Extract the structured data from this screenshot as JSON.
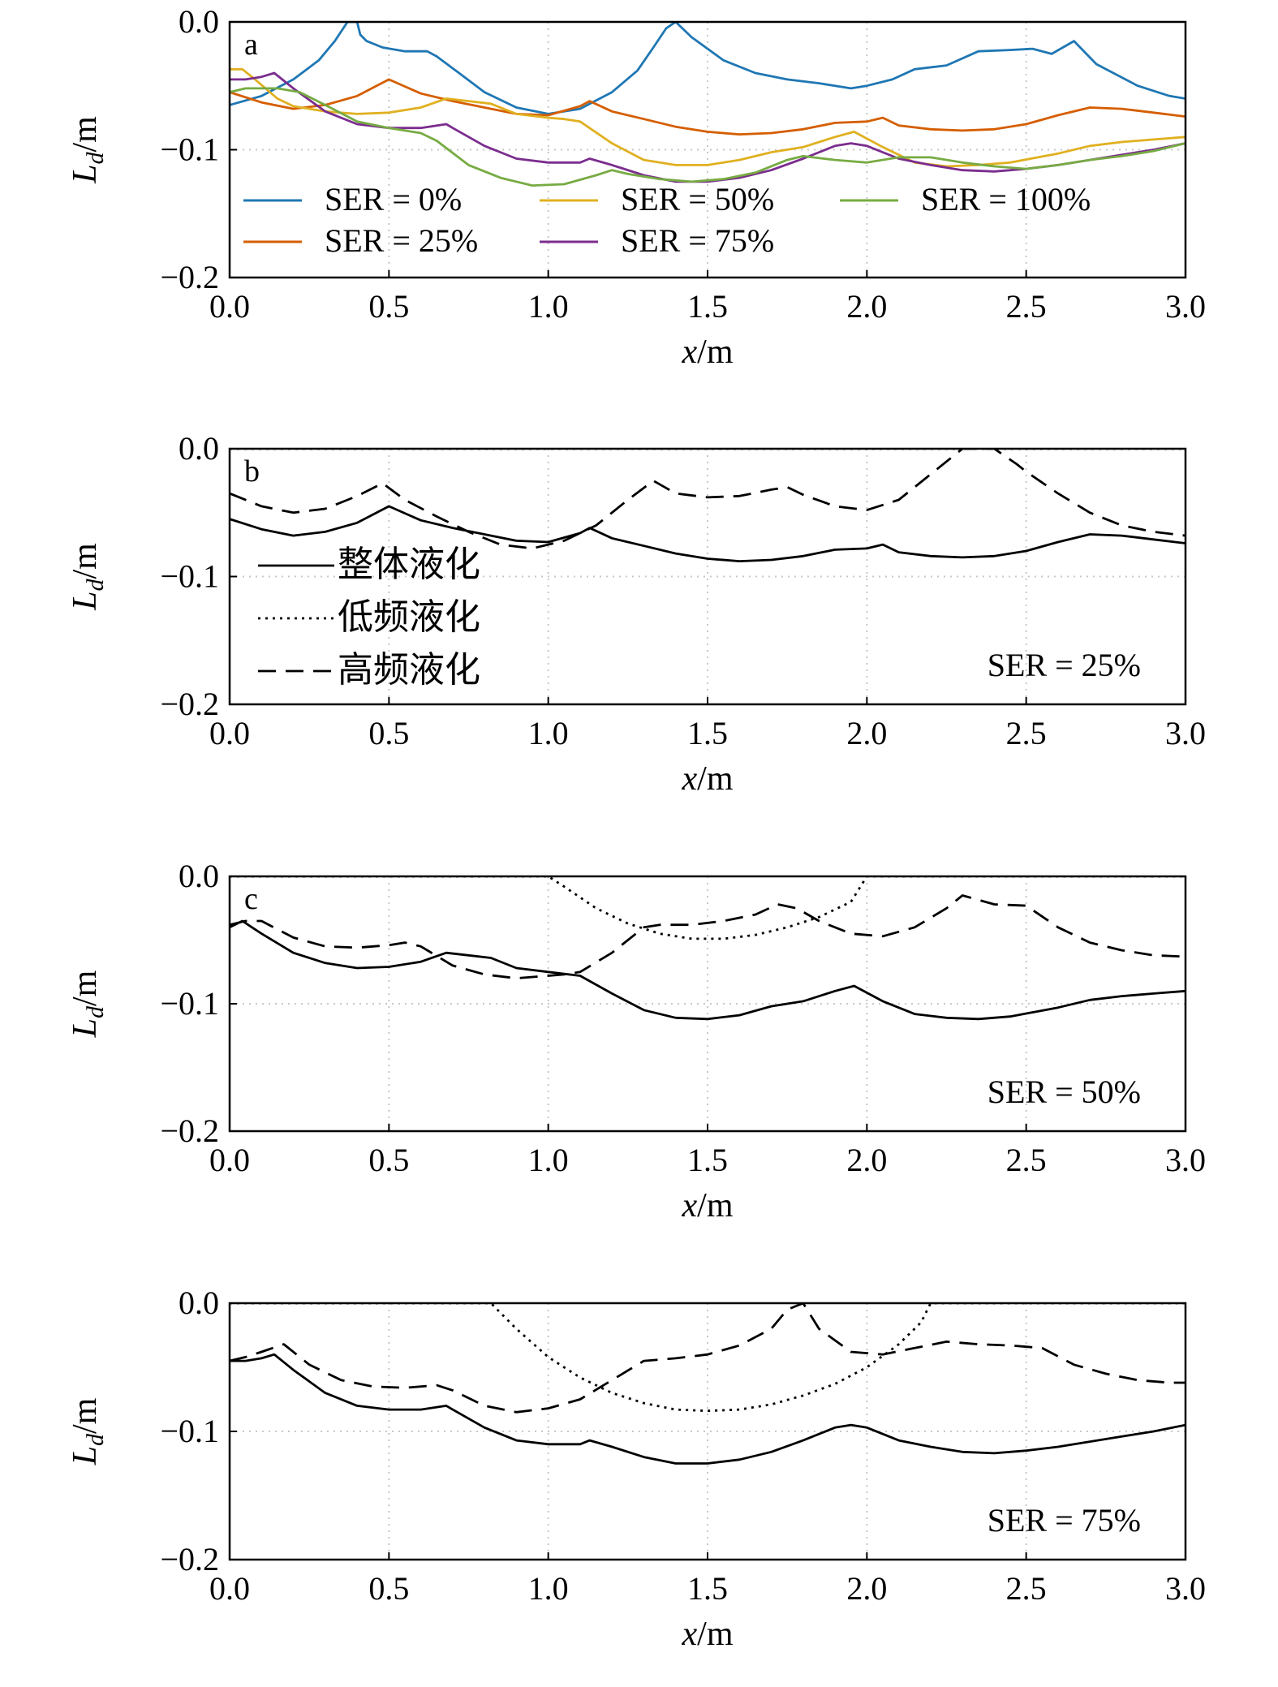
{
  "figure": {
    "xlabel_var": "x",
    "xlabel_unit": "/m",
    "ylabel_var": "L",
    "ylabel_sub": "d",
    "ylabel_unit": "/m"
  },
  "chart_data": [
    {
      "type": "line",
      "panel_label": "a",
      "annotation": "",
      "xlim": [
        0,
        3.0
      ],
      "ylim": [
        -0.2,
        0.0
      ],
      "xticks": [
        "0.0",
        "0.5",
        "1.0",
        "1.5",
        "2.0",
        "2.5",
        "3.0"
      ],
      "yticks": [
        "0.0",
        "−0.1",
        "−0.2"
      ],
      "grid": "dotted",
      "legend_placement": "lower-left, three columns",
      "series": [
        {
          "name": "SER = 0%",
          "color": "#1f77b4",
          "dash": "solid",
          "x": [
            0.0,
            0.1,
            0.2,
            0.28,
            0.33,
            0.37,
            0.4,
            0.41,
            0.43,
            0.48,
            0.55,
            0.62,
            0.65,
            0.72,
            0.8,
            0.9,
            1.0,
            1.1,
            1.2,
            1.28,
            1.33,
            1.37,
            1.4,
            1.45,
            1.55,
            1.65,
            1.75,
            1.85,
            1.95,
            2.0,
            2.08,
            2.15,
            2.25,
            2.35,
            2.45,
            2.52,
            2.58,
            2.65,
            2.72,
            2.85,
            2.95,
            3.0
          ],
          "y": [
            -0.065,
            -0.058,
            -0.045,
            -0.03,
            -0.015,
            0.0,
            0.0,
            -0.01,
            -0.015,
            -0.02,
            -0.023,
            -0.023,
            -0.027,
            -0.04,
            -0.055,
            -0.067,
            -0.072,
            -0.068,
            -0.055,
            -0.038,
            -0.02,
            -0.005,
            0.0,
            -0.012,
            -0.03,
            -0.04,
            -0.045,
            -0.048,
            -0.052,
            -0.05,
            -0.045,
            -0.037,
            -0.034,
            -0.023,
            -0.022,
            -0.021,
            -0.025,
            -0.015,
            -0.033,
            -0.05,
            -0.058,
            -0.06
          ]
        },
        {
          "name": "SER = 25%",
          "color": "#d55e00",
          "dash": "solid",
          "x": [
            0.0,
            0.1,
            0.2,
            0.3,
            0.4,
            0.5,
            0.6,
            0.7,
            0.8,
            0.9,
            1.0,
            1.1,
            1.13,
            1.2,
            1.3,
            1.4,
            1.5,
            1.6,
            1.7,
            1.8,
            1.9,
            2.0,
            2.05,
            2.1,
            2.2,
            2.3,
            2.4,
            2.5,
            2.6,
            2.7,
            2.8,
            2.9,
            3.0
          ],
          "y": [
            -0.055,
            -0.063,
            -0.068,
            -0.065,
            -0.058,
            -0.045,
            -0.056,
            -0.062,
            -0.067,
            -0.072,
            -0.073,
            -0.066,
            -0.062,
            -0.07,
            -0.076,
            -0.082,
            -0.086,
            -0.088,
            -0.087,
            -0.084,
            -0.079,
            -0.078,
            -0.075,
            -0.081,
            -0.084,
            -0.085,
            -0.084,
            -0.08,
            -0.073,
            -0.067,
            -0.068,
            -0.071,
            -0.074
          ]
        },
        {
          "name": "SER = 50%",
          "color": "#e0b020",
          "dash": "solid",
          "x": [
            0.0,
            0.04,
            0.08,
            0.15,
            0.2,
            0.3,
            0.4,
            0.5,
            0.6,
            0.68,
            0.75,
            0.82,
            0.9,
            1.0,
            1.05,
            1.1,
            1.2,
            1.3,
            1.4,
            1.5,
            1.6,
            1.7,
            1.8,
            1.9,
            1.96,
            2.05,
            2.15,
            2.25,
            2.35,
            2.45,
            2.6,
            2.7,
            2.8,
            2.9,
            3.0
          ],
          "y": [
            -0.037,
            -0.037,
            -0.045,
            -0.06,
            -0.066,
            -0.07,
            -0.072,
            -0.071,
            -0.067,
            -0.06,
            -0.062,
            -0.064,
            -0.072,
            -0.075,
            -0.076,
            -0.078,
            -0.095,
            -0.108,
            -0.112,
            -0.112,
            -0.108,
            -0.102,
            -0.098,
            -0.09,
            -0.086,
            -0.098,
            -0.11,
            -0.113,
            -0.112,
            -0.11,
            -0.103,
            -0.097,
            -0.094,
            -0.092,
            -0.09
          ]
        },
        {
          "name": "SER = 75%",
          "color": "#7b2d8e",
          "dash": "solid",
          "x": [
            0.0,
            0.05,
            0.1,
            0.14,
            0.2,
            0.3,
            0.4,
            0.5,
            0.6,
            0.68,
            0.7,
            0.8,
            0.9,
            1.0,
            1.1,
            1.13,
            1.2,
            1.3,
            1.4,
            1.5,
            1.6,
            1.7,
            1.8,
            1.9,
            1.95,
            2.0,
            2.1,
            2.2,
            2.3,
            2.4,
            2.5,
            2.6,
            2.7,
            2.8,
            2.9,
            3.0
          ],
          "y": [
            -0.045,
            -0.045,
            -0.043,
            -0.04,
            -0.052,
            -0.07,
            -0.08,
            -0.083,
            -0.083,
            -0.08,
            -0.083,
            -0.097,
            -0.107,
            -0.11,
            -0.11,
            -0.107,
            -0.112,
            -0.12,
            -0.125,
            -0.125,
            -0.122,
            -0.116,
            -0.107,
            -0.097,
            -0.095,
            -0.097,
            -0.107,
            -0.112,
            -0.116,
            -0.117,
            -0.115,
            -0.112,
            -0.108,
            -0.104,
            -0.1,
            -0.095
          ]
        },
        {
          "name": "SER = 100%",
          "color": "#77ab43",
          "dash": "solid",
          "x": [
            0.0,
            0.05,
            0.15,
            0.22,
            0.3,
            0.4,
            0.5,
            0.55,
            0.6,
            0.65,
            0.75,
            0.85,
            0.95,
            1.05,
            1.15,
            1.2,
            1.25,
            1.35,
            1.45,
            1.55,
            1.65,
            1.75,
            1.8,
            1.9,
            2.0,
            2.1,
            2.2,
            2.3,
            2.4,
            2.5,
            2.6,
            2.7,
            2.8,
            2.9,
            3.0
          ],
          "y": [
            -0.055,
            -0.052,
            -0.052,
            -0.055,
            -0.065,
            -0.078,
            -0.083,
            -0.085,
            -0.087,
            -0.093,
            -0.112,
            -0.122,
            -0.128,
            -0.127,
            -0.12,
            -0.116,
            -0.119,
            -0.123,
            -0.125,
            -0.123,
            -0.118,
            -0.108,
            -0.105,
            -0.108,
            -0.11,
            -0.106,
            -0.106,
            -0.11,
            -0.113,
            -0.115,
            -0.112,
            -0.108,
            -0.105,
            -0.101,
            -0.095
          ]
        }
      ]
    },
    {
      "type": "line",
      "panel_label": "b",
      "annotation": "SER = 25%",
      "xlim": [
        0,
        3.0
      ],
      "ylim": [
        -0.2,
        0.0
      ],
      "xticks": [
        "0.0",
        "0.5",
        "1.0",
        "1.5",
        "2.0",
        "2.5",
        "3.0"
      ],
      "yticks": [
        "0.0",
        "−0.1",
        "−0.2"
      ],
      "grid": "dotted",
      "legend_placement": "lower-left",
      "series": [
        {
          "name": "整体液化",
          "color": "#000000",
          "dash": "solid",
          "x": [
            0.0,
            0.1,
            0.2,
            0.3,
            0.4,
            0.5,
            0.6,
            0.7,
            0.8,
            0.9,
            1.0,
            1.1,
            1.13,
            1.2,
            1.3,
            1.4,
            1.5,
            1.6,
            1.7,
            1.8,
            1.9,
            2.0,
            2.05,
            2.1,
            2.2,
            2.3,
            2.4,
            2.5,
            2.6,
            2.7,
            2.8,
            2.9,
            3.0
          ],
          "y": [
            -0.055,
            -0.063,
            -0.068,
            -0.065,
            -0.058,
            -0.045,
            -0.056,
            -0.062,
            -0.067,
            -0.072,
            -0.073,
            -0.066,
            -0.062,
            -0.07,
            -0.076,
            -0.082,
            -0.086,
            -0.088,
            -0.087,
            -0.084,
            -0.079,
            -0.078,
            -0.075,
            -0.081,
            -0.084,
            -0.085,
            -0.084,
            -0.08,
            -0.073,
            -0.067,
            -0.068,
            -0.071,
            -0.074
          ]
        },
        {
          "name": "低频液化",
          "color": "#000000",
          "dash": "dotted",
          "x": [
            0.0,
            3.0
          ],
          "y": [
            0.0,
            0.0
          ]
        },
        {
          "name": "高频液化",
          "color": "#000000",
          "dash": "dashed",
          "x": [
            0.0,
            0.1,
            0.2,
            0.3,
            0.4,
            0.48,
            0.55,
            0.65,
            0.75,
            0.85,
            0.95,
            1.05,
            1.15,
            1.25,
            1.33,
            1.4,
            1.5,
            1.6,
            1.7,
            1.75,
            1.8,
            1.9,
            2.0,
            2.1,
            2.2,
            2.3,
            2.4,
            2.47,
            2.5,
            2.6,
            2.7,
            2.8,
            2.9,
            3.0
          ],
          "y": [
            -0.035,
            -0.045,
            -0.05,
            -0.047,
            -0.037,
            -0.027,
            -0.04,
            -0.053,
            -0.065,
            -0.075,
            -0.078,
            -0.072,
            -0.06,
            -0.04,
            -0.025,
            -0.035,
            -0.038,
            -0.037,
            -0.032,
            -0.03,
            -0.036,
            -0.045,
            -0.048,
            -0.04,
            -0.02,
            0.0,
            0.0,
            -0.012,
            -0.018,
            -0.035,
            -0.05,
            -0.06,
            -0.065,
            -0.068
          ]
        }
      ]
    },
    {
      "type": "line",
      "panel_label": "c",
      "annotation": "SER = 50%",
      "xlim": [
        0,
        3.0
      ],
      "ylim": [
        -0.2,
        0.0
      ],
      "xticks": [
        "0.0",
        "0.5",
        "1.0",
        "1.5",
        "2.0",
        "2.5",
        "3.0"
      ],
      "yticks": [
        "0.0",
        "−0.1",
        "−0.2"
      ],
      "grid": "dotted",
      "legend_placement": "none",
      "series": [
        {
          "name": "",
          "color": "#000000",
          "dash": "solid",
          "x": [
            0.0,
            0.04,
            0.1,
            0.2,
            0.3,
            0.4,
            0.5,
            0.6,
            0.68,
            0.75,
            0.82,
            0.9,
            1.0,
            1.1,
            1.2,
            1.3,
            1.4,
            1.5,
            1.6,
            1.7,
            1.8,
            1.9,
            1.96,
            2.05,
            2.15,
            2.25,
            2.35,
            2.45,
            2.6,
            2.7,
            2.8,
            2.9,
            3.0
          ],
          "y": [
            -0.04,
            -0.035,
            -0.045,
            -0.06,
            -0.068,
            -0.072,
            -0.071,
            -0.067,
            -0.06,
            -0.062,
            -0.064,
            -0.072,
            -0.075,
            -0.078,
            -0.092,
            -0.105,
            -0.111,
            -0.112,
            -0.109,
            -0.102,
            -0.098,
            -0.09,
            -0.086,
            -0.098,
            -0.108,
            -0.111,
            -0.112,
            -0.11,
            -0.103,
            -0.097,
            -0.094,
            -0.092,
            -0.09
          ]
        },
        {
          "name": "",
          "color": "#000000",
          "dash": "dotted",
          "x": [
            0.0,
            1.0,
            1.05,
            1.15,
            1.25,
            1.35,
            1.45,
            1.55,
            1.65,
            1.75,
            1.85,
            1.95,
            2.0,
            3.0
          ],
          "y": [
            0.0,
            0.0,
            -0.008,
            -0.025,
            -0.037,
            -0.045,
            -0.049,
            -0.049,
            -0.046,
            -0.04,
            -0.032,
            -0.02,
            0.0,
            0.0
          ]
        },
        {
          "name": "",
          "color": "#000000",
          "dash": "dashed",
          "x": [
            0.0,
            0.05,
            0.1,
            0.2,
            0.3,
            0.4,
            0.5,
            0.55,
            0.6,
            0.7,
            0.8,
            0.9,
            1.0,
            1.05,
            1.1,
            1.2,
            1.3,
            1.35,
            1.45,
            1.55,
            1.65,
            1.72,
            1.78,
            1.85,
            1.95,
            2.05,
            2.15,
            2.25,
            2.3,
            2.4,
            2.5,
            2.6,
            2.7,
            2.8,
            2.9,
            3.0
          ],
          "y": [
            -0.038,
            -0.035,
            -0.035,
            -0.048,
            -0.055,
            -0.056,
            -0.054,
            -0.052,
            -0.055,
            -0.07,
            -0.077,
            -0.08,
            -0.078,
            -0.077,
            -0.075,
            -0.06,
            -0.04,
            -0.038,
            -0.038,
            -0.035,
            -0.03,
            -0.022,
            -0.025,
            -0.035,
            -0.045,
            -0.047,
            -0.04,
            -0.025,
            -0.015,
            -0.022,
            -0.023,
            -0.04,
            -0.052,
            -0.058,
            -0.062,
            -0.063
          ]
        }
      ]
    },
    {
      "type": "line",
      "panel_label": "",
      "annotation": "SER = 75%",
      "xlim": [
        0,
        3.0
      ],
      "ylim": [
        -0.2,
        0.0
      ],
      "xticks": [
        "0.0",
        "0.5",
        "1.0",
        "1.5",
        "2.0",
        "2.5",
        "3.0"
      ],
      "yticks": [
        "0.0",
        "−0.1",
        "−0.2"
      ],
      "grid": "dotted",
      "legend_placement": "none",
      "series": [
        {
          "name": "",
          "color": "#000000",
          "dash": "solid",
          "x": [
            0.0,
            0.05,
            0.1,
            0.14,
            0.2,
            0.3,
            0.4,
            0.5,
            0.6,
            0.68,
            0.7,
            0.8,
            0.9,
            1.0,
            1.1,
            1.13,
            1.2,
            1.3,
            1.4,
            1.5,
            1.6,
            1.7,
            1.8,
            1.9,
            1.95,
            2.0,
            2.1,
            2.2,
            2.3,
            2.4,
            2.5,
            2.6,
            2.7,
            2.8,
            2.9,
            3.0
          ],
          "y": [
            -0.045,
            -0.045,
            -0.043,
            -0.04,
            -0.052,
            -0.07,
            -0.08,
            -0.083,
            -0.083,
            -0.08,
            -0.083,
            -0.097,
            -0.107,
            -0.11,
            -0.11,
            -0.107,
            -0.112,
            -0.12,
            -0.125,
            -0.125,
            -0.122,
            -0.116,
            -0.107,
            -0.097,
            -0.095,
            -0.097,
            -0.107,
            -0.112,
            -0.116,
            -0.117,
            -0.115,
            -0.112,
            -0.108,
            -0.104,
            -0.1,
            -0.095
          ]
        },
        {
          "name": "",
          "color": "#000000",
          "dash": "dotted",
          "x": [
            0.0,
            0.82,
            0.9,
            1.0,
            1.1,
            1.2,
            1.3,
            1.4,
            1.5,
            1.6,
            1.7,
            1.8,
            1.9,
            2.0,
            2.1,
            2.17,
            2.2,
            3.0
          ],
          "y": [
            0.0,
            0.0,
            -0.02,
            -0.042,
            -0.058,
            -0.07,
            -0.078,
            -0.083,
            -0.084,
            -0.083,
            -0.079,
            -0.072,
            -0.063,
            -0.05,
            -0.032,
            -0.015,
            0.0,
            0.0
          ]
        },
        {
          "name": "",
          "color": "#000000",
          "dash": "dashed",
          "x": [
            0.0,
            0.05,
            0.1,
            0.17,
            0.25,
            0.35,
            0.45,
            0.55,
            0.65,
            0.7,
            0.8,
            0.9,
            1.0,
            1.1,
            1.2,
            1.3,
            1.4,
            1.5,
            1.6,
            1.7,
            1.75,
            1.8,
            1.85,
            1.95,
            2.05,
            2.15,
            2.25,
            2.35,
            2.45,
            2.55,
            2.65,
            2.75,
            2.85,
            2.95,
            3.0
          ],
          "y": [
            -0.045,
            -0.042,
            -0.038,
            -0.032,
            -0.048,
            -0.06,
            -0.065,
            -0.066,
            -0.064,
            -0.068,
            -0.08,
            -0.085,
            -0.082,
            -0.075,
            -0.06,
            -0.045,
            -0.043,
            -0.04,
            -0.033,
            -0.02,
            -0.005,
            0.0,
            -0.02,
            -0.038,
            -0.04,
            -0.035,
            -0.03,
            -0.032,
            -0.033,
            -0.035,
            -0.048,
            -0.055,
            -0.06,
            -0.062,
            -0.062
          ]
        }
      ]
    }
  ]
}
